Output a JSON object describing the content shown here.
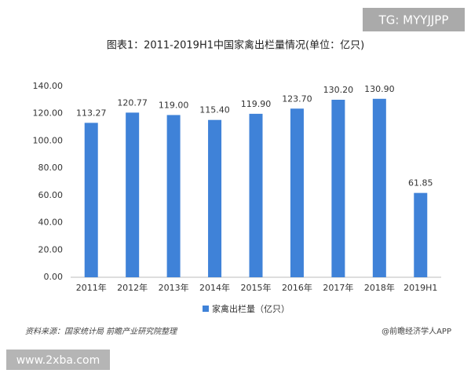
{
  "chart_data": {
    "type": "bar",
    "title": "图表1：2011-2019H1中国家禽出栏量情况(单位：亿只)",
    "categories": [
      "2011年",
      "2012年",
      "2013年",
      "2014年",
      "2015年",
      "2016年",
      "2017年",
      "2018年",
      "2019H1"
    ],
    "series": [
      {
        "name": "家禽出栏量（亿只）",
        "color": "#3f82d8",
        "values": [
          113.27,
          120.77,
          119,
          115.4,
          119.9,
          123.7,
          130.2,
          130.9,
          61.85
        ],
        "value_labels": [
          "113.27",
          "120.77",
          "119.00",
          "115.40",
          "119.90",
          "123.70",
          "130.20",
          "130.90",
          "61.85"
        ]
      }
    ],
    "ylim": [
      0,
      140
    ],
    "yticks": [
      {
        "value": 0,
        "label": "0.00"
      },
      {
        "value": 20,
        "label": "20.00"
      },
      {
        "value": 40,
        "label": "40.00"
      },
      {
        "value": 60,
        "label": "60.00"
      },
      {
        "value": 80,
        "label": "80.00"
      },
      {
        "value": 100,
        "label": "100.00"
      },
      {
        "value": 120,
        "label": "120.00"
      },
      {
        "value": 140,
        "label": "140.00"
      }
    ],
    "grid": false,
    "legend": "bottom",
    "source": "资料来源：国家统计局 前瞻产业研究院整理",
    "credit": "@前瞻经济学人APP",
    "annotations": [
      "TG: MYYJJPP",
      "www.2xba.com"
    ]
  }
}
